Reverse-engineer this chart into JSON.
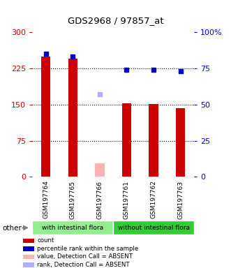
{
  "title": "GDS2968 / 97857_at",
  "samples": [
    "GSM197764",
    "GSM197765",
    "GSM197766",
    "GSM197761",
    "GSM197762",
    "GSM197763"
  ],
  "counts": [
    250,
    245,
    null,
    152,
    151,
    143
  ],
  "counts_absent": [
    null,
    null,
    28,
    null,
    null,
    null
  ],
  "pct_ranks": [
    85,
    83,
    null,
    74,
    74,
    73
  ],
  "pct_ranks_absent": [
    null,
    null,
    57,
    null,
    null,
    null
  ],
  "ylim_left": [
    0,
    300
  ],
  "ylim_right": [
    0,
    100
  ],
  "yticks_left": [
    0,
    75,
    150,
    225,
    300
  ],
  "yticks_right": [
    0,
    25,
    50,
    75,
    100
  ],
  "grid_lines": [
    75,
    150,
    225
  ],
  "left_axis_color": "#cc0000",
  "right_axis_color": "#0000cc",
  "bar_color_present": "#cc0000",
  "bar_color_absent": "#ffb3b3",
  "rank_color_present": "#0000cc",
  "rank_color_absent": "#b0b0ff",
  "bar_width": 0.35,
  "marker_size": 5,
  "bg_color": "#d3d3d3",
  "group_left_color": "#90ee90",
  "group_right_color": "#32cd32",
  "legend_items": [
    {
      "label": "count",
      "color": "#cc0000"
    },
    {
      "label": "percentile rank within the sample",
      "color": "#0000cc"
    },
    {
      "label": "value, Detection Call = ABSENT",
      "color": "#ffb3b3"
    },
    {
      "label": "rank, Detection Call = ABSENT",
      "color": "#b0b0ff"
    }
  ]
}
